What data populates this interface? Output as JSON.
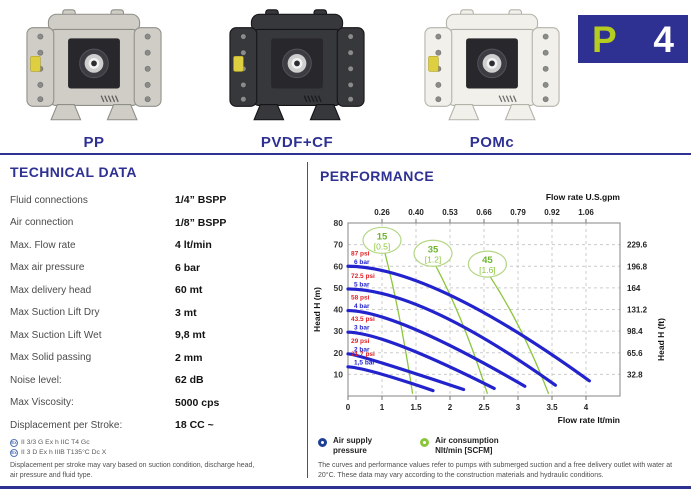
{
  "colors": {
    "navy": "#2e3192",
    "badge_p_green": "#b6cc1f",
    "curve_blue": "#2323cd",
    "psi_red": "#e31e24",
    "air_green": "#8cc63e",
    "grid_gray": "#cccccc"
  },
  "badge": {
    "p": "P",
    "num": "4"
  },
  "products": [
    {
      "label": "PP",
      "body": "#cfcdc6",
      "edge": "#8f8f89"
    },
    {
      "label": "PVDF+CF",
      "body": "#37383c",
      "edge": "#141417"
    },
    {
      "label": "POMc",
      "body": "#f1f0ea",
      "edge": "#b3b2a9"
    }
  ],
  "technical": {
    "title": "TECHNICAL DATA",
    "rows": [
      {
        "label": "Fluid connections",
        "value": "1/4” BSPP"
      },
      {
        "label": "Air connection",
        "value": "1/8” BSPP"
      },
      {
        "label": "Max. Flow rate",
        "value": "4 lt/min"
      },
      {
        "label": "Max air pressure",
        "value": "6 bar"
      },
      {
        "label": "Max delivery head",
        "value": "60 mt"
      },
      {
        "label": "Max Suction Lift Dry",
        "value": "3 mt"
      },
      {
        "label": "Max Suction Lift Wet",
        "value": "9,8 mt"
      },
      {
        "label": "Max Solid passing",
        "value": "2 mm"
      },
      {
        "label": "Noise level:",
        "value": "62 dB"
      },
      {
        "label": "Max Viscosity:",
        "value": "5000 cps"
      },
      {
        "label": "Displacement per Stroke:",
        "value": "18 CC ~"
      }
    ],
    "atex": [
      {
        "icon": "ex-atex-icon",
        "text": "II 3/3 G Ex h IIC T4 Gc"
      },
      {
        "icon": "ex-atex-icon",
        "text": "II 3 D Ex h IIIB T135°C Dc X"
      }
    ],
    "footnote": "Displacement per stroke may vary based on suction condition, discharge head, air pressure and fluid type."
  },
  "performance": {
    "title": "PERFORMANCE",
    "legend": [
      {
        "line1": "Air supply",
        "line2": "pressure"
      },
      {
        "line1": "Air consumption",
        "line2": "Nlt/min [SCFM]"
      }
    ],
    "footnote": "The curves and performance values refer to pumps with submerged suction and a free delivery outlet with water at 20°C. These data may vary according to the construction materials and hydraulic conditions."
  },
  "chart_data": {
    "type": "line",
    "title": "",
    "grid": "dashed",
    "x_axis_bottom": {
      "label": "Flow rate lt/min",
      "ticks": [
        "0",
        "1",
        "1.5",
        "2",
        "2.5",
        "3",
        "3.5",
        "4"
      ]
    },
    "x_axis_top": {
      "label": "Flow rate U.S.gpm",
      "ticks": [
        "0.26",
        "0.40",
        "0.53",
        "0.66",
        "0.79",
        "0.92",
        "1.06"
      ]
    },
    "y_axis_left": {
      "label": "Head H (m)",
      "min": 0,
      "max": 80,
      "step": 10
    },
    "y_axis_right": {
      "label": "Head H (ft)",
      "ticks": [
        "229.6",
        "196.8",
        "164",
        "131.2",
        "98.4",
        "65.6",
        "32.8"
      ]
    },
    "series": [
      {
        "name": "6 bar",
        "psi_label": "87 psi",
        "bar_label": "6 bar",
        "points": [
          [
            0,
            60
          ],
          [
            2,
            47
          ],
          [
            4.05,
            7
          ]
        ]
      },
      {
        "name": "5 bar",
        "psi_label": "72.5 psi",
        "bar_label": "5 bar",
        "points": [
          [
            0,
            49.5
          ],
          [
            1.8,
            39
          ],
          [
            3.55,
            5
          ]
        ]
      },
      {
        "name": "4 bar",
        "psi_label": "58 psi",
        "bar_label": "4 bar",
        "points": [
          [
            0,
            39.5
          ],
          [
            1.5,
            32
          ],
          [
            3.1,
            4.5
          ]
        ]
      },
      {
        "name": "3 bar",
        "psi_label": "43.5 psi",
        "bar_label": "3 bar",
        "points": [
          [
            0,
            29.5
          ],
          [
            1.3,
            24
          ],
          [
            2.65,
            3.5
          ]
        ]
      },
      {
        "name": "2 bar",
        "psi_label": "29 psi",
        "bar_label": "2 bar",
        "points": [
          [
            0,
            19.5
          ],
          [
            1,
            16
          ],
          [
            2.2,
            3
          ]
        ]
      },
      {
        "name": "1,5 bar",
        "psi_label": "21.7 psi",
        "bar_label": "1,5 bar",
        "points": [
          [
            0,
            13.5
          ],
          [
            0.9,
            10.5
          ],
          [
            1.75,
            2.5
          ]
        ]
      }
    ],
    "air_consumption": [
      {
        "value": "15",
        "scfm": "[0.5]",
        "label_at": [
          1.0,
          72
        ],
        "line_end": [
          1.45,
          1
        ]
      },
      {
        "value": "35",
        "scfm": "[1.2]",
        "label_at": [
          1.75,
          66
        ],
        "line_end": [
          2.55,
          1
        ]
      },
      {
        "value": "45",
        "scfm": "[1.6]",
        "label_at": [
          2.55,
          61
        ],
        "line_end": [
          3.45,
          1
        ]
      }
    ]
  }
}
